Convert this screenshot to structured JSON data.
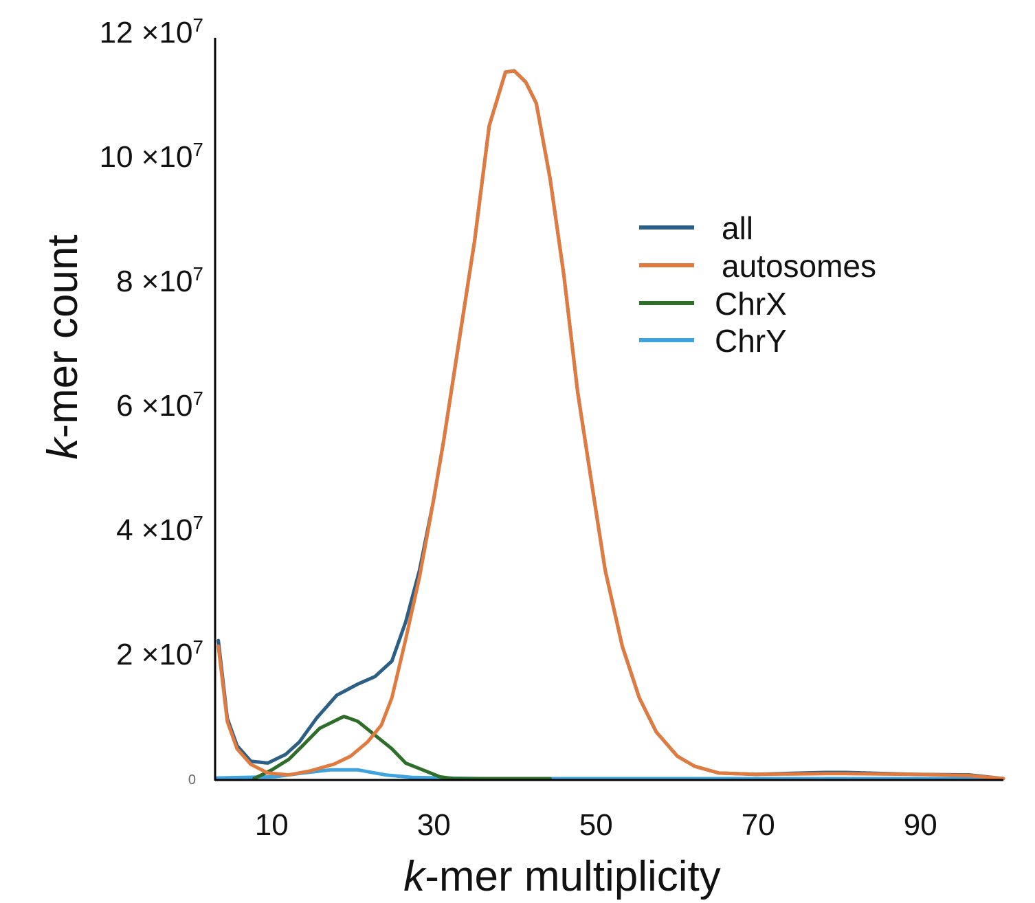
{
  "chart_data": {
    "type": "line",
    "title": "",
    "xlabel": "k-mer multiplicity",
    "ylabel": "k-mer count",
    "xlim": [
      3.2,
      100.4
    ],
    "ylim": [
      0,
      120000000
    ],
    "grid": false,
    "legend_position": "top-right",
    "x_ticks": [
      10,
      30,
      50,
      70,
      90
    ],
    "x_tick_labels": [
      "10",
      "30",
      "50",
      "70",
      "90"
    ],
    "y_ticks": [
      0,
      20000000,
      40000000,
      60000000,
      80000000,
      100000000,
      120000000
    ],
    "y_tick_labels": [
      "0",
      "2 ×10⁷",
      "4 ×10⁷",
      "6 ×10⁷",
      "8 ×10⁷",
      "10 ×10⁷",
      "12 ×10⁷"
    ],
    "series": [
      {
        "name": "all",
        "color": "#2b5f86",
        "x": [
          3.6,
          4.7,
          5.9,
          7.6,
          9.7,
          11.9,
          13.6,
          15.7,
          18.2,
          20.8,
          22.9,
          25,
          26.7,
          28.4,
          30.1,
          31.4,
          33.1,
          35.2,
          37,
          39,
          40.1,
          41.5,
          42.8,
          44.5,
          46.2,
          47.9,
          49.6,
          51.3,
          53.4,
          55.5,
          57.6,
          60.2,
          62.3,
          65.3,
          69.9,
          78.4,
          80.9,
          89.4,
          96.2,
          100.4
        ],
        "y": [
          22200000,
          9700000,
          5300000,
          2800000,
          2500000,
          3900000,
          5900000,
          9700000,
          13400000,
          15200000,
          16400000,
          18900000,
          25200000,
          33500000,
          44500000,
          54500000,
          68800000,
          86500000,
          105000000,
          113600000,
          113800000,
          112000000,
          108600000,
          96500000,
          81000000,
          62200000,
          47800000,
          33500000,
          21300000,
          13000000,
          7500000,
          3600000,
          2000000,
          900000,
          700000,
          1000000,
          1000000,
          700000,
          600000,
          0
        ]
      },
      {
        "name": "autosomes",
        "color": "#e07a3e",
        "x": [
          3.6,
          4.7,
          5.9,
          7.6,
          9.7,
          12.3,
          14.8,
          17.8,
          19.9,
          22,
          23.7,
          25,
          26.7,
          28.4,
          30.1,
          31.4,
          33.1,
          35.2,
          37,
          39,
          40.1,
          41.5,
          42.8,
          44.5,
          46.2,
          47.9,
          49.6,
          51.3,
          53.4,
          55.5,
          57.6,
          60.2,
          62.3,
          65.3,
          69.9,
          78.4,
          80.9,
          89.4,
          96.2,
          100.4
        ],
        "y": [
          21300000,
          9200000,
          4800000,
          2300000,
          900000,
          600000,
          1200000,
          2300000,
          3600000,
          5900000,
          8600000,
          13000000,
          22400000,
          32400000,
          44500000,
          54500000,
          68800000,
          86500000,
          105000000,
          113600000,
          113800000,
          112000000,
          108600000,
          96500000,
          81000000,
          62200000,
          47800000,
          33500000,
          21300000,
          13000000,
          7500000,
          3600000,
          2000000,
          900000,
          700000,
          800000,
          800000,
          700000,
          500000,
          0
        ]
      },
      {
        "name": "ChrX",
        "color": "#2f6e2a",
        "x": [
          8,
          10.2,
          12.3,
          14,
          16.1,
          18.6,
          19.1,
          20.8,
          22.9,
          25,
          26.7,
          28.8,
          30.9,
          32.6,
          44.5
        ],
        "y": [
          0,
          1400000,
          3100000,
          5300000,
          8100000,
          9700000,
          10000000,
          9200000,
          7000000,
          4800000,
          2500000,
          1400000,
          300000,
          0,
          0
        ]
      },
      {
        "name": "ChrY",
        "color": "#3fa3dd",
        "x": [
          3.3,
          10.6,
          14,
          17.4,
          20.8,
          24.2,
          27.5,
          36,
          100
        ],
        "y": [
          100000,
          300000,
          900000,
          1400000,
          1400000,
          600000,
          200000,
          0,
          0
        ]
      }
    ]
  }
}
